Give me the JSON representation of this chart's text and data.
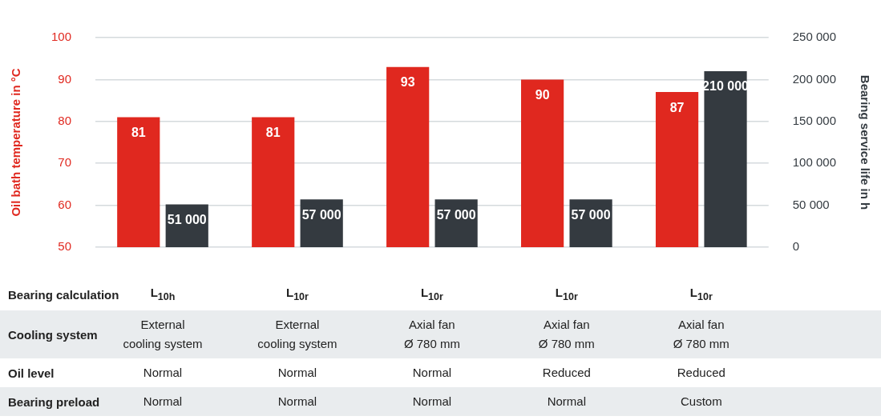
{
  "chart_data": {
    "type": "bar",
    "categories": [
      "L$_{10h}$",
      "L$_{10r}$",
      "L$_{10r}$",
      "L$_{10r}$",
      "L$_{10r}$"
    ],
    "xlabel": "Bearing calculation",
    "ylabel": "Oil bath temperature in °C",
    "y2label": "Bearing service life in h",
    "series": [
      {
        "color": "#e0281f",
        "values": [
          81,
          81,
          93,
          90,
          87
        ],
        "value_labels": [
          "81",
          "81",
          "93",
          "90",
          "87"
        ]
      },
      {
        "color": "#343a40",
        "axis": "y2",
        "values": [
          51000,
          57000,
          57000,
          57000,
          210000
        ],
        "value_labels": [
          "51 000",
          "57 000",
          "57 000",
          "57 000",
          "210 000"
        ]
      }
    ],
    "ylim": [
      50,
      100
    ],
    "yticks": [
      50,
      60,
      70,
      80,
      90,
      100
    ],
    "y2lim": [
      0,
      250000
    ],
    "y2ticks": [
      {
        "value": 0,
        "label": "0"
      },
      {
        "value": 50000,
        "label": "50 000"
      },
      {
        "value": 100000,
        "label": "100 000"
      },
      {
        "value": 150000,
        "label": "150 000"
      },
      {
        "value": 200000,
        "label": "200 000"
      },
      {
        "value": 250000,
        "label": "250 000"
      }
    ],
    "grid": "y",
    "legend": false,
    "annotations": [
      "Cooling system",
      "External\ncooling system",
      "External\ncooling system",
      "Axial fan\nØ 780 mm",
      "Axial fan\nØ 780 mm",
      "Axial fan\nØ 780 mm",
      "Oil level",
      "Normal",
      "Normal",
      "Normal",
      "Reduced",
      "Reduced",
      "Bearing preload",
      "Normal",
      "Normal",
      "Normal",
      "Normal",
      "Custom"
    ]
  }
}
